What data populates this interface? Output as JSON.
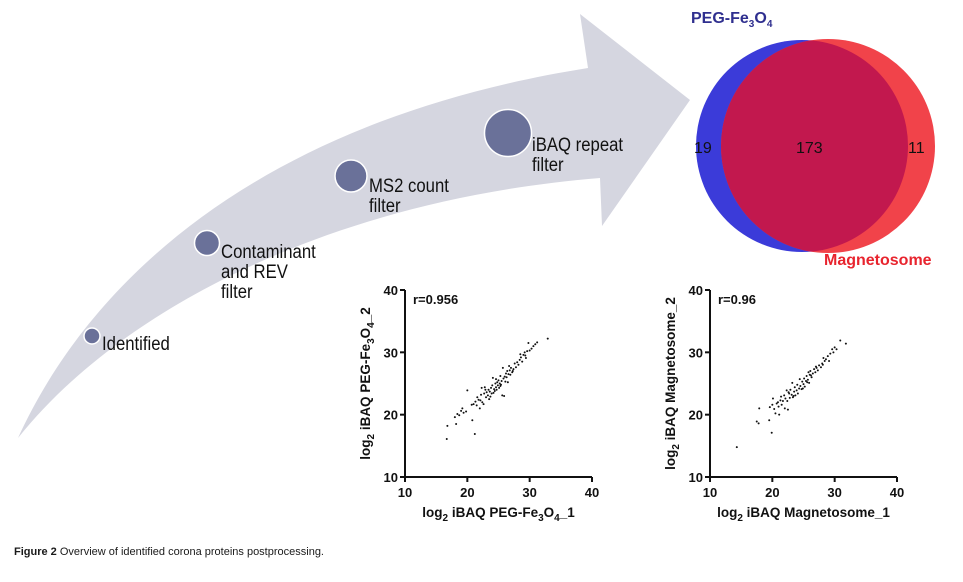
{
  "figure": {
    "caption_label": "Figure 2",
    "caption_text": " Overview of identified corona proteins postprocessing."
  },
  "workflow": {
    "steps": [
      {
        "label": "Identified"
      },
      {
        "label": "Contaminant\nand REV\nfilter"
      },
      {
        "label": "MS2 count\nfilter"
      },
      {
        "label": "iBAQ repeat\nfilter"
      }
    ],
    "colors": {
      "arrow": "#d5d6e0",
      "node": "#6a7199"
    }
  },
  "venn": {
    "set_a": {
      "name_prefix": "PEG-Fe",
      "sub1": "3",
      "mid": "O",
      "sub2": "4",
      "only_count": "19",
      "color": "#3b3bd9"
    },
    "set_b": {
      "name": "Magnetosome",
      "only_count": "11",
      "color": "#f1434a"
    },
    "overlap": {
      "count": "173",
      "color": "#c2184e"
    }
  },
  "chart_data": [
    {
      "type": "scatter",
      "title": "",
      "annotation": "r=0.956",
      "xlabel": "log2 iBAQ PEG-Fe3O4_1",
      "ylabel": "log2 iBAQ PEG-Fe3O4_2",
      "xlabel_parts": {
        "pre": "log",
        "sub": "2",
        "main": " iBAQ PEG-Fe",
        "sub2": "3",
        "mid": "O",
        "sub3": "4",
        "post": "_1"
      },
      "ylabel_parts": {
        "pre": "log",
        "sub": "2",
        "main": " iBAQ PEG-Fe",
        "sub2": "3",
        "mid": "O",
        "sub3": "4",
        "post": "_2"
      },
      "xlim": [
        10,
        40
      ],
      "ylim": [
        10,
        40
      ],
      "xticks": [
        10,
        20,
        30,
        40
      ],
      "yticks": [
        10,
        20,
        30,
        40
      ],
      "grid": false,
      "points": [
        [
          16.7,
          16.1
        ],
        [
          16.8,
          18.2
        ],
        [
          18.2,
          18.5
        ],
        [
          18.0,
          19.6
        ],
        [
          18.4,
          20.1
        ],
        [
          18.7,
          19.9
        ],
        [
          19.0,
          20.6
        ],
        [
          19.2,
          21.0
        ],
        [
          19.4,
          20.3
        ],
        [
          19.8,
          20.5
        ],
        [
          20.0,
          23.9
        ],
        [
          20.8,
          19.1
        ],
        [
          21.2,
          16.9
        ],
        [
          20.7,
          21.6
        ],
        [
          21.0,
          21.7
        ],
        [
          21.3,
          22.1
        ],
        [
          21.5,
          21.5
        ],
        [
          21.6,
          22.8
        ],
        [
          21.8,
          22.4
        ],
        [
          22.0,
          21.0
        ],
        [
          22.1,
          22.3
        ],
        [
          22.2,
          23.2
        ],
        [
          22.3,
          24.3
        ],
        [
          22.4,
          22.0
        ],
        [
          22.6,
          21.7
        ],
        [
          22.7,
          23.4
        ],
        [
          22.8,
          24.4
        ],
        [
          23.0,
          22.8
        ],
        [
          23.1,
          23.6
        ],
        [
          23.3,
          23.1
        ],
        [
          23.4,
          24.0
        ],
        [
          23.5,
          22.5
        ],
        [
          23.6,
          23.7
        ],
        [
          23.8,
          24.3
        ],
        [
          23.9,
          23.4
        ],
        [
          24.0,
          24.7
        ],
        [
          24.1,
          25.9
        ],
        [
          24.2,
          23.5
        ],
        [
          24.3,
          24.1
        ],
        [
          24.4,
          23.8
        ],
        [
          24.5,
          25.0
        ],
        [
          24.6,
          24.4
        ],
        [
          24.7,
          24.0
        ],
        [
          24.8,
          25.2
        ],
        [
          24.9,
          24.7
        ],
        [
          25.0,
          25.5
        ],
        [
          25.1,
          24.3
        ],
        [
          25.2,
          25.0
        ],
        [
          25.3,
          26.2
        ],
        [
          25.4,
          24.8
        ],
        [
          25.5,
          25.4
        ],
        [
          25.6,
          23.1
        ],
        [
          25.7,
          27.5
        ],
        [
          25.8,
          25.8
        ],
        [
          25.9,
          23.0
        ],
        [
          26.0,
          26.1
        ],
        [
          26.1,
          25.3
        ],
        [
          26.2,
          26.6
        ],
        [
          26.3,
          26.0
        ],
        [
          26.4,
          27.0
        ],
        [
          26.5,
          25.2
        ],
        [
          26.6,
          26.5
        ],
        [
          26.8,
          27.1
        ],
        [
          26.9,
          26.4
        ],
        [
          27.0,
          27.5
        ],
        [
          27.2,
          26.8
        ],
        [
          27.4,
          27.3
        ],
        [
          27.6,
          28.2
        ],
        [
          27.8,
          27.6
        ],
        [
          28.0,
          28.4
        ],
        [
          28.2,
          28.0
        ],
        [
          28.4,
          28.8
        ],
        [
          28.6,
          29.2
        ],
        [
          28.8,
          28.5
        ],
        [
          29.0,
          29.6
        ],
        [
          29.2,
          30.0
        ],
        [
          29.4,
          29.1
        ],
        [
          29.6,
          30.2
        ],
        [
          29.8,
          31.5
        ],
        [
          30.0,
          30.3
        ],
        [
          30.3,
          30.6
        ],
        [
          30.6,
          31.0
        ],
        [
          30.9,
          31.3
        ],
        [
          31.2,
          31.6
        ],
        [
          32.9,
          32.2
        ],
        [
          22.9,
          24.0
        ],
        [
          23.7,
          22.9
        ],
        [
          24.6,
          25.7
        ],
        [
          25.3,
          24.6
        ],
        [
          26.7,
          27.8
        ],
        [
          27.3,
          27.0
        ],
        [
          28.5,
          29.7
        ],
        [
          29.3,
          29.5
        ]
      ]
    },
    {
      "type": "scatter",
      "title": "",
      "annotation": "r=0.96",
      "xlabel": "log2 iBAQ Magnetosome_1",
      "ylabel": "log2 iBAQ Magnetosome_2",
      "xlabel_parts": {
        "pre": "log",
        "sub": "2",
        "main": " iBAQ Magnetosome_1"
      },
      "ylabel_parts": {
        "pre": "log",
        "sub": "2",
        "main": " iBAQ Magnetosome_2"
      },
      "xlim": [
        10,
        40
      ],
      "ylim": [
        10,
        40
      ],
      "xticks": [
        10,
        20,
        30,
        40
      ],
      "yticks": [
        10,
        20,
        30,
        40
      ],
      "grid": false,
      "points": [
        [
          14.3,
          14.8
        ],
        [
          17.5,
          18.9
        ],
        [
          17.8,
          18.6
        ],
        [
          17.9,
          21.0
        ],
        [
          19.5,
          19.1
        ],
        [
          19.6,
          21.2
        ],
        [
          19.9,
          17.1
        ],
        [
          20.0,
          21.6
        ],
        [
          20.1,
          22.6
        ],
        [
          20.3,
          20.9
        ],
        [
          20.5,
          20.2
        ],
        [
          20.7,
          21.8
        ],
        [
          20.9,
          22.0
        ],
        [
          21.0,
          21.3
        ],
        [
          21.1,
          20.0
        ],
        [
          21.3,
          22.3
        ],
        [
          21.4,
          22.9
        ],
        [
          21.5,
          21.6
        ],
        [
          21.7,
          22.2
        ],
        [
          21.9,
          23.1
        ],
        [
          22.0,
          21.0
        ],
        [
          22.1,
          22.6
        ],
        [
          22.3,
          23.9
        ],
        [
          22.4,
          22.2
        ],
        [
          22.5,
          20.8
        ],
        [
          22.7,
          23.4
        ],
        [
          22.8,
          22.7
        ],
        [
          22.9,
          24.0
        ],
        [
          23.1,
          23.2
        ],
        [
          23.2,
          25.1
        ],
        [
          23.3,
          22.8
        ],
        [
          23.5,
          23.7
        ],
        [
          23.6,
          24.4
        ],
        [
          23.7,
          23.1
        ],
        [
          23.9,
          23.9
        ],
        [
          24.0,
          24.8
        ],
        [
          24.1,
          23.4
        ],
        [
          24.3,
          24.2
        ],
        [
          24.4,
          25.7
        ],
        [
          24.5,
          24.6
        ],
        [
          24.7,
          24.1
        ],
        [
          24.8,
          25.3
        ],
        [
          25.0,
          24.9
        ],
        [
          25.1,
          25.8
        ],
        [
          25.2,
          24.5
        ],
        [
          25.4,
          25.4
        ],
        [
          25.5,
          26.2
        ],
        [
          25.7,
          25.6
        ],
        [
          25.8,
          26.8
        ],
        [
          25.9,
          25.1
        ],
        [
          26.0,
          26.4
        ],
        [
          26.1,
          27.0
        ],
        [
          26.3,
          26.0
        ],
        [
          26.5,
          26.6
        ],
        [
          26.7,
          27.3
        ],
        [
          26.9,
          26.8
        ],
        [
          27.1,
          27.5
        ],
        [
          27.3,
          27.1
        ],
        [
          27.5,
          27.9
        ],
        [
          27.8,
          27.6
        ],
        [
          28.0,
          28.2
        ],
        [
          28.2,
          29.1
        ],
        [
          28.4,
          28.6
        ],
        [
          28.6,
          28.9
        ],
        [
          28.9,
          29.4
        ],
        [
          29.1,
          28.6
        ],
        [
          29.3,
          29.8
        ],
        [
          29.6,
          30.5
        ],
        [
          29.8,
          30.0
        ],
        [
          30.0,
          30.8
        ],
        [
          30.3,
          30.5
        ],
        [
          30.9,
          31.9
        ],
        [
          31.8,
          31.4
        ],
        [
          22.6,
          23.6
        ],
        [
          23.4,
          23.0
        ],
        [
          24.9,
          24.2
        ],
        [
          25.6,
          25.2
        ],
        [
          26.2,
          26.3
        ],
        [
          27.0,
          27.7
        ],
        [
          28.1,
          28.0
        ]
      ]
    }
  ]
}
